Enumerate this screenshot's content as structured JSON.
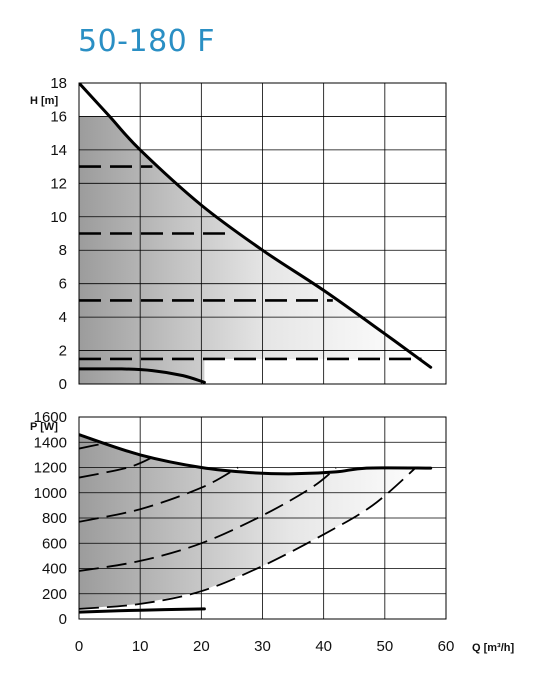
{
  "title": "50-180 F",
  "colors": {
    "title": "#2a8fc4",
    "curve": "#000000",
    "grid": "#000000"
  },
  "chart_data": {
    "x_axis": {
      "label": "Q [m³/h]",
      "range": [
        0,
        60
      ],
      "ticks": [
        0,
        10,
        20,
        30,
        40,
        50,
        60
      ]
    },
    "head": {
      "type": "line",
      "ylabel": "H [m]",
      "ylim": [
        0,
        18
      ],
      "yticks": [
        0,
        2,
        4,
        6,
        8,
        10,
        12,
        14,
        16,
        18
      ],
      "grid": true,
      "max_curve": {
        "style": "solid",
        "points": [
          [
            0,
            18
          ],
          [
            5,
            16
          ],
          [
            10,
            14
          ],
          [
            20,
            10.7
          ],
          [
            30,
            8
          ],
          [
            40,
            5.6
          ],
          [
            50,
            3
          ],
          [
            57.5,
            1
          ]
        ]
      },
      "min_curve": {
        "style": "solid",
        "points": [
          [
            0,
            0.9
          ],
          [
            7,
            0.9
          ],
          [
            12,
            0.8
          ],
          [
            17,
            0.5
          ],
          [
            20.5,
            0.1
          ]
        ]
      },
      "constant_curves": [
        {
          "style": "dashed",
          "value": 13,
          "x_end": 12
        },
        {
          "style": "dashed",
          "value": 9,
          "x_end": 25
        },
        {
          "style": "dashed",
          "value": 5,
          "x_end": 41.5
        },
        {
          "style": "dashed",
          "value": 1.5,
          "x_end": 56
        }
      ],
      "shaded_region": {
        "from_x": 0,
        "to_x": 56,
        "top_at_x0": 16
      }
    },
    "power": {
      "type": "line",
      "ylabel": "P [W]",
      "ylim": [
        0,
        1600
      ],
      "yticks": [
        0,
        200,
        400,
        600,
        800,
        1000,
        1200,
        1400,
        1600
      ],
      "grid": true,
      "max_curve": {
        "style": "solid",
        "points": [
          [
            0,
            1460
          ],
          [
            10,
            1300
          ],
          [
            20,
            1200
          ],
          [
            28,
            1160
          ],
          [
            35,
            1150
          ],
          [
            42,
            1165
          ],
          [
            47,
            1195
          ],
          [
            57.5,
            1195
          ]
        ]
      },
      "min_curve": {
        "style": "solid",
        "points": [
          [
            0,
            55
          ],
          [
            10,
            70
          ],
          [
            20.5,
            80
          ]
        ]
      },
      "constant_curves": [
        {
          "style": "dashed",
          "points": [
            [
              0,
              1350
            ],
            [
              4,
              1390
            ]
          ]
        },
        {
          "style": "dashed",
          "points": [
            [
              0,
              1120
            ],
            [
              8,
              1200
            ],
            [
              12,
              1280
            ]
          ]
        },
        {
          "style": "dashed",
          "points": [
            [
              0,
              770
            ],
            [
              10,
              870
            ],
            [
              20,
              1040
            ],
            [
              26,
              1200
            ]
          ]
        },
        {
          "style": "dashed",
          "points": [
            [
              0,
              380
            ],
            [
              10,
              460
            ],
            [
              20,
              600
            ],
            [
              30,
              820
            ],
            [
              38,
              1040
            ],
            [
              42,
              1195
            ]
          ]
        },
        {
          "style": "dashed",
          "points": [
            [
              0,
              80
            ],
            [
              10,
              120
            ],
            [
              20,
              220
            ],
            [
              30,
              420
            ],
            [
              40,
              670
            ],
            [
              48,
              900
            ],
            [
              55,
              1195
            ]
          ]
        }
      ]
    }
  }
}
